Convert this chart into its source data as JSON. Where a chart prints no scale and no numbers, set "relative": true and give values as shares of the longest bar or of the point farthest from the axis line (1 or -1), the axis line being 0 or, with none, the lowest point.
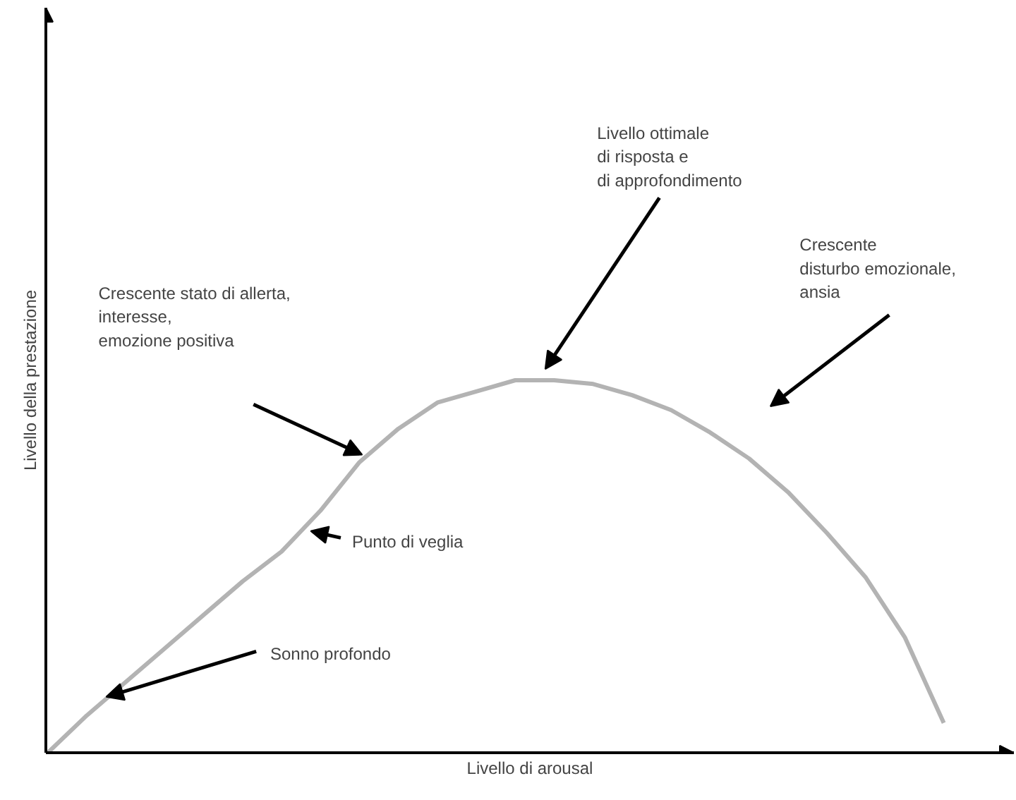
{
  "chart_data": {
    "type": "line",
    "relative": true,
    "xlabel": "Livello di arousal",
    "ylabel": "Livello della prestazione",
    "categories": [
      null,
      null,
      null,
      null,
      null,
      null,
      null,
      null,
      null,
      null,
      null,
      null,
      null,
      null,
      null,
      null,
      null,
      null,
      null,
      null,
      null,
      null,
      null,
      null
    ],
    "series": [
      {
        "color": "#b3b3b3",
        "values": [
          0,
          0.1,
          0.19,
          0.28,
          0.37,
          0.46,
          0.54,
          0.65,
          0.78,
          0.87,
          0.94,
          0.97,
          1.0,
          1.0,
          0.99,
          0.96,
          0.92,
          0.86,
          0.79,
          0.7,
          0.59,
          0.47,
          0.31,
          0.08
        ]
      }
    ],
    "annotations": [
      "Livello ottimale\ndi risposta e\ndi approfondimento",
      "Crescente stato di allerta,\ninteresse,\nemozione positiva",
      "Crescente\ndisturbo emozionale,\nansia",
      "Punto di veglia",
      "Sonno profondo"
    ],
    "marker": "none",
    "line_style": "solid"
  }
}
